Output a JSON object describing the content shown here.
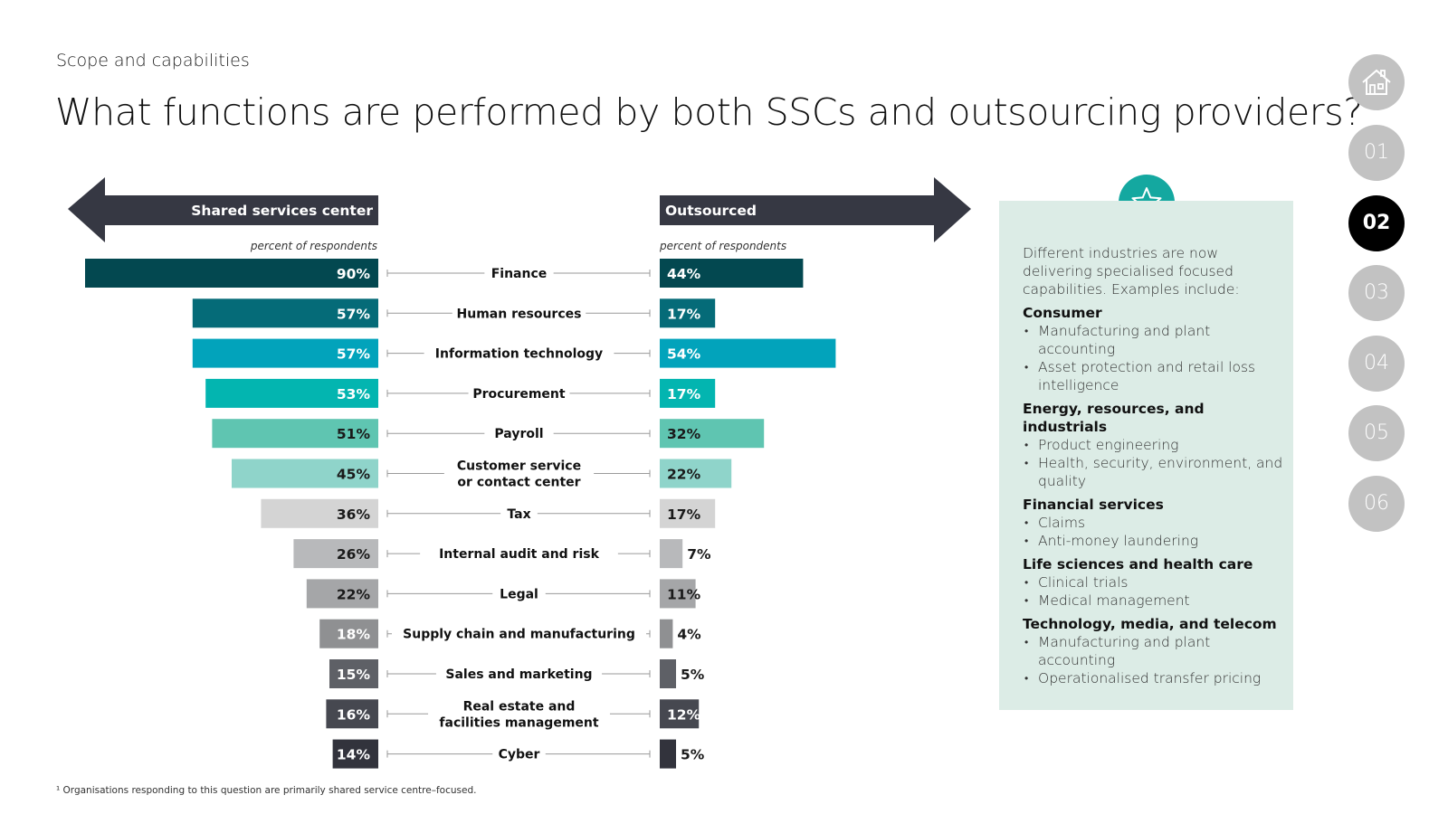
{
  "header": {
    "section": "Scope and capabilities",
    "title": "What functions are performed by both SSCs and outsourcing providers?"
  },
  "chart_data": {
    "type": "bar",
    "orientation": "horizontal-butterfly",
    "left_label": "Shared services center",
    "right_label": "Outsourced",
    "left_unit_label": "percent of respondents",
    "right_unit_label": "percent of respondents",
    "categories": [
      "Finance",
      "Human resources",
      "Information technology",
      "Procurement",
      "Payroll",
      "Customer service\nor contact center",
      "Tax",
      "Internal audit and risk",
      "Legal",
      "Supply chain and manufacturing",
      "Sales and marketing",
      "Real estate and\nfacilities management",
      "Cyber"
    ],
    "series": [
      {
        "name": "Shared services center",
        "values": [
          90,
          57,
          57,
          53,
          51,
          45,
          36,
          26,
          22,
          18,
          15,
          16,
          14
        ]
      },
      {
        "name": "Outsourced",
        "values": [
          44,
          17,
          54,
          17,
          32,
          22,
          17,
          7,
          11,
          4,
          5,
          12,
          5
        ]
      }
    ],
    "colors": [
      "#034850",
      "#056b78",
      "#02a3bb",
      "#03b5b0",
      "#5fc5b1",
      "#8fd4ca",
      "#d4d4d4",
      "#b8b9bb",
      "#a5a6a8",
      "#8f9092",
      "#5e6066",
      "#464850",
      "#32333c"
    ],
    "value_suffix": "%",
    "xlim": [
      0,
      100
    ]
  },
  "colors": {
    "arrow": "#363843",
    "panel": "#dcece6",
    "accent": "#14a8a0",
    "nav_inactive": "#c2c2c2",
    "nav_active": "#000000"
  },
  "panel": {
    "intro": "Different industries are now delivering specialised focused capabilities. Examples include:",
    "categories": [
      {
        "title": "Consumer",
        "items": [
          "Manufacturing and plant accounting",
          "Asset protection and retail loss intelligence"
        ]
      },
      {
        "title": "Energy, resources, and industrials",
        "items": [
          "Product engineering",
          "Health, security, environment, and quality"
        ]
      },
      {
        "title": "Financial services",
        "items": [
          "Claims",
          "Anti-money laundering"
        ]
      },
      {
        "title": "Life sciences and health care",
        "items": [
          "Clinical trials",
          "Medical management"
        ]
      },
      {
        "title": "Technology, media, and telecom",
        "items": [
          "Manufacturing and plant accounting",
          "Operationalised transfer pricing"
        ]
      }
    ]
  },
  "nav": {
    "home_icon": "home-icon",
    "items": [
      "01",
      "02",
      "03",
      "04",
      "05",
      "06"
    ],
    "active": "02"
  },
  "footnote": "¹ Organisations responding to this question are primarily shared service centre–focused."
}
